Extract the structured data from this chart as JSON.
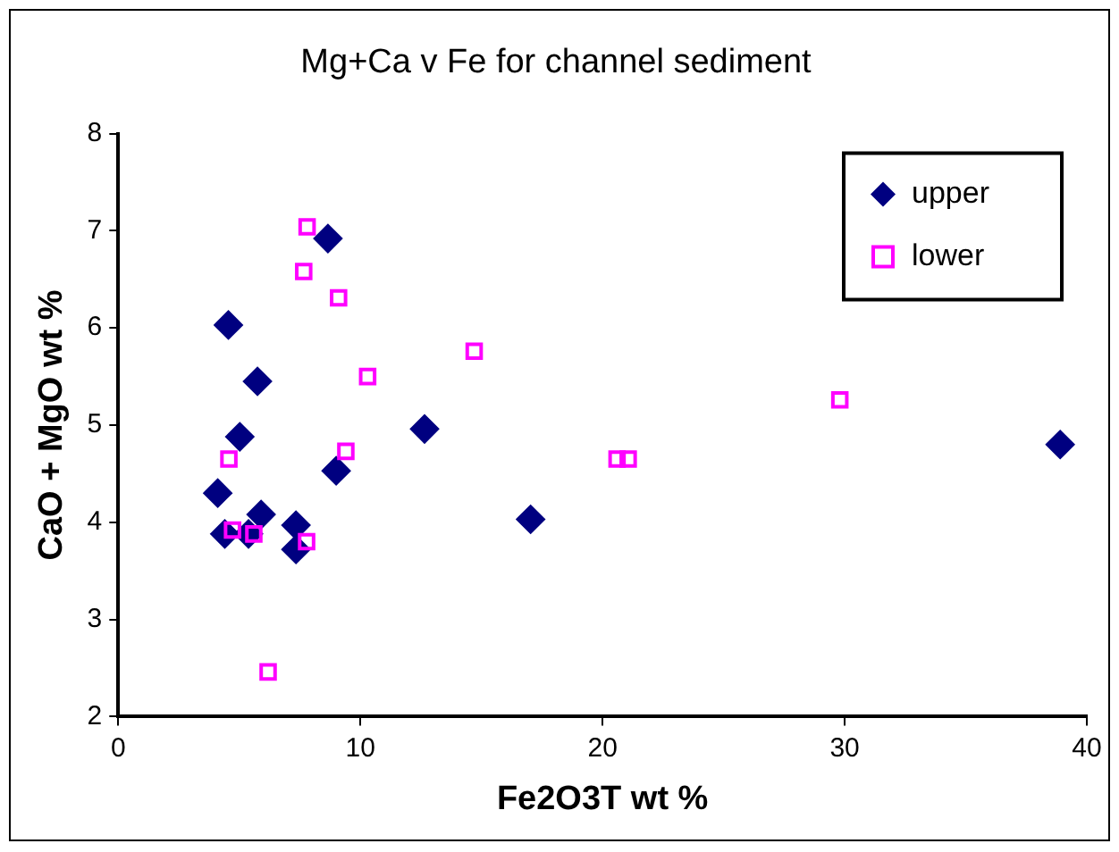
{
  "chart_data": {
    "type": "scatter",
    "title": "Mg+Ca v Fe for channel sediment",
    "xlabel": "Fe2O3T wt %",
    "ylabel": "CaO + MgO wt %",
    "xlim": [
      0,
      40
    ],
    "xticks": [
      0,
      10,
      20,
      30,
      40
    ],
    "ylim": [
      2,
      8
    ],
    "yticks": [
      2,
      3,
      4,
      5,
      6,
      7,
      8
    ],
    "grid": false,
    "legend": "top right",
    "series": [
      {
        "name": "upper",
        "color": "#000080",
        "marker": "diamond",
        "x": [
          8.66,
          4.55,
          5.75,
          5.02,
          4.11,
          5.9,
          4.4,
          5.38,
          7.34,
          7.34,
          9.0,
          12.65,
          17.03,
          38.9
        ],
        "values": [
          6.92,
          6.03,
          5.45,
          4.88,
          4.3,
          4.08,
          3.88,
          3.88,
          3.97,
          3.72,
          4.53,
          4.96,
          4.03,
          4.8
        ]
      },
      {
        "name": "lower",
        "color": "#ff00ff",
        "marker": "square",
        "x": [
          7.8,
          7.66,
          9.1,
          10.3,
          4.57,
          9.4,
          4.72,
          5.6,
          7.78,
          6.19,
          14.7,
          29.8,
          20.6,
          21.06
        ],
        "values": [
          7.04,
          6.58,
          6.31,
          5.5,
          4.65,
          4.73,
          3.92,
          3.88,
          3.8,
          2.46,
          5.76,
          5.26,
          4.65,
          4.65
        ]
      }
    ]
  }
}
